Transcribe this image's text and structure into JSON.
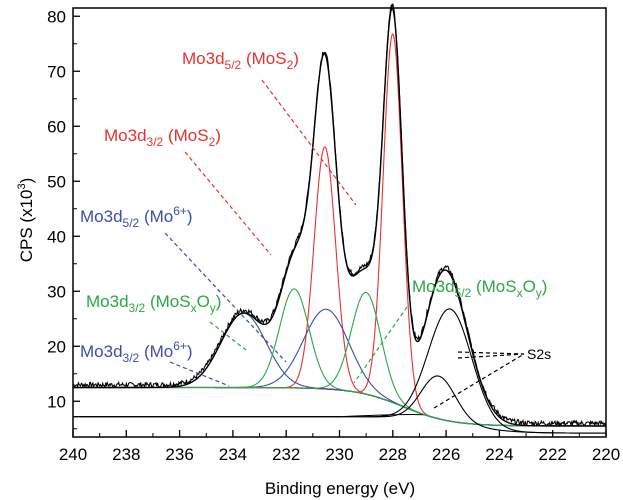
{
  "chart_data": {
    "type": "line",
    "title": "",
    "xlabel": "Binding energy (eV)",
    "ylabel_main": "CPS (x10",
    "ylabel_sup": "3",
    "ylabel_end": ")",
    "xlim": [
      240,
      220
    ],
    "ylim": [
      3.5,
      81.5
    ],
    "xticks": [
      240,
      238,
      236,
      234,
      232,
      230,
      228,
      226,
      224,
      222,
      220
    ],
    "yticks": [
      10,
      20,
      30,
      40,
      50,
      60,
      70,
      80
    ],
    "colors": {
      "mos2": "#e8312f",
      "mo6": "#3c4ea8",
      "mosxoy": "#2aa845",
      "s2s": "#000000",
      "envelope": "#000000"
    },
    "peaks": [
      {
        "name": "Mo3d5/2 (MoS2)",
        "group": "mos2",
        "center": 228.0,
        "height": 67,
        "fwhm": 0.85
      },
      {
        "name": "Mo3d3/2 (MoS2)",
        "group": "mos2",
        "center": 230.55,
        "height": 44,
        "fwhm": 0.95
      },
      {
        "name": "Mo3d5/2 (Mo6+)",
        "group": "mo6",
        "center": 230.5,
        "height": 14.5,
        "fwhm": 2.0
      },
      {
        "name": "Mo3d3/2 (Mo6+)",
        "group": "mo6",
        "center": 233.6,
        "height": 13.5,
        "fwhm": 2.0
      },
      {
        "name": "Mo3d5/2 (MoSxOy)",
        "group": "mosxoy",
        "center": 229.0,
        "height": 18.5,
        "fwhm": 1.3
      },
      {
        "name": "Mo3d3/2 (MoSxOy)",
        "group": "mosxoy",
        "center": 231.7,
        "height": 18,
        "fwhm": 1.3
      },
      {
        "name": "S2s",
        "group": "s2s",
        "center": 225.85,
        "height": 20.5,
        "fwhm": 1.9
      },
      {
        "name": "S2s",
        "group": "s2s",
        "center": 226.3,
        "height": 8,
        "fwhm": 1.5
      }
    ],
    "annotations": {
      "mos2_52": {
        "base": "Mo3d",
        "sub": "5/2",
        "mid": " (MoS",
        "sub2": "2",
        "end": ")"
      },
      "mos2_32": {
        "base": "Mo3d",
        "sub": "3/2",
        "mid": " (MoS",
        "sub2": "2",
        "end": ")"
      },
      "mo6_52": {
        "base": "Mo3d",
        "sub": "5/2",
        "mid": " (Mo",
        "sup": "6+",
        "end": ")"
      },
      "mo6_32": {
        "base": "Mo3d",
        "sub": "3/2",
        "mid": " (Mo",
        "sup": "6+",
        "end": ")"
      },
      "mosxoy_32": {
        "base": "Mo3d",
        "sub": "3/2",
        "mid": " (MoS",
        "sub2": "x",
        "mid2": "O",
        "sub3": "y",
        "end": ")"
      },
      "mosxoy_52": {
        "base": "Mo3d",
        "sub": "5/2",
        "mid": " (MoS",
        "sub2": "x",
        "mid2": "O",
        "sub3": "y",
        "end": ")"
      },
      "s2s": "S2s"
    }
  }
}
